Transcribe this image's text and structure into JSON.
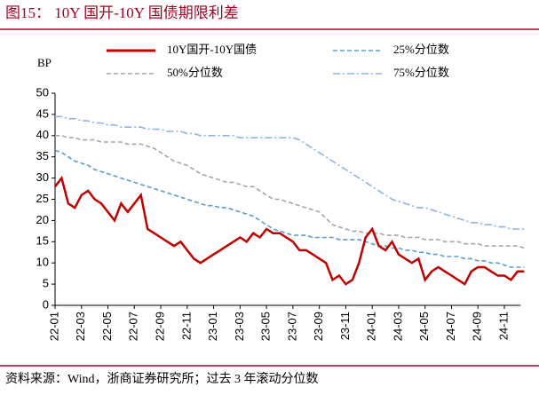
{
  "chart_data": {
    "type": "line",
    "title": "图15：  10Y 国开-10Y 国债期限利差",
    "y_label": "BP",
    "source": "资料来源：Wind，浙商证券研究所；过去 3 年滚动分位数",
    "categories": [
      "22-01",
      null,
      null,
      null,
      "22-03",
      null,
      null,
      null,
      "22-05",
      null,
      null,
      null,
      "22-07",
      null,
      null,
      null,
      "22-09",
      null,
      null,
      null,
      "22-11",
      null,
      null,
      null,
      "23-01",
      null,
      null,
      null,
      "23-03",
      null,
      null,
      null,
      "23-05",
      null,
      null,
      null,
      "23-07",
      null,
      null,
      null,
      "23-09",
      null,
      null,
      null,
      "23-11",
      null,
      null,
      null,
      "24-01",
      null,
      null,
      null,
      "24-03",
      null,
      null,
      null,
      "24-05",
      null,
      null,
      null,
      "24-07",
      null,
      null,
      null,
      "24-09",
      null,
      null,
      null,
      "24-11",
      null,
      null,
      null
    ],
    "ylim": [
      0,
      50
    ],
    "yticks": [
      0,
      5,
      10,
      15,
      20,
      25,
      30,
      35,
      40,
      45,
      50
    ],
    "series": [
      {
        "name": "10Y国开-10Y国债",
        "color": "#c00000",
        "style": "solid",
        "values": [
          28,
          30,
          24,
          23,
          26,
          27,
          25,
          24,
          22,
          20,
          24,
          22,
          24,
          26,
          18,
          17,
          16,
          15,
          14,
          15,
          13,
          11,
          10,
          11,
          12,
          13,
          14,
          15,
          16,
          15,
          17,
          16,
          18,
          17,
          17,
          16,
          15,
          13,
          13,
          12,
          11,
          10,
          6,
          7,
          5,
          6,
          10,
          16,
          18,
          14,
          13,
          15,
          12,
          11,
          10,
          11,
          6,
          8,
          9,
          8,
          7,
          6,
          5,
          8,
          9,
          9,
          8,
          7,
          7,
          6,
          8,
          8
        ]
      },
      {
        "name": "25%分位数",
        "color": "#5b9bd5",
        "style": "dashed",
        "values": [
          36.5,
          36,
          35,
          34,
          33.5,
          33,
          32,
          31.5,
          31,
          30.5,
          30,
          29.5,
          29,
          28.5,
          28,
          27.5,
          27,
          26.5,
          26,
          25.5,
          25,
          24.5,
          24,
          23.5,
          23.5,
          23,
          23,
          22.5,
          22,
          21.5,
          21,
          20,
          19,
          18,
          17.5,
          17,
          16.5,
          16.5,
          16.5,
          16,
          16,
          16,
          16,
          15.5,
          15.5,
          15.5,
          15.5,
          15,
          14.5,
          14,
          14,
          13.5,
          13.5,
          13,
          13,
          12.5,
          12.5,
          12,
          12,
          11.5,
          11.5,
          11.5,
          11,
          11,
          10.5,
          10.5,
          10,
          10,
          9.5,
          9,
          9,
          9
        ]
      },
      {
        "name": "50%分位数",
        "color": "#a6a6a6",
        "style": "dashed",
        "values": [
          40,
          40,
          39.5,
          39.5,
          39,
          39,
          39,
          38.5,
          38.5,
          38.5,
          38.5,
          38,
          38,
          38,
          37.5,
          37,
          36,
          35,
          34,
          33.5,
          33,
          32,
          31,
          30.5,
          30,
          29.5,
          29,
          29,
          28.5,
          28,
          28,
          27,
          26,
          25,
          25,
          24.5,
          24,
          23.5,
          23,
          22.5,
          22,
          20.5,
          19,
          18.5,
          18,
          17.5,
          17.5,
          17,
          17,
          17,
          16.5,
          16.5,
          16.5,
          16,
          16,
          16,
          15.5,
          15.5,
          15.5,
          15,
          15,
          15,
          14.5,
          14.5,
          14.5,
          14,
          14,
          14,
          14,
          14,
          14,
          13.5
        ]
      },
      {
        "name": "75%分位数",
        "color": "#8eb4e3",
        "style": "dashdot",
        "values": [
          44.5,
          44.5,
          44,
          44,
          43.5,
          43.5,
          43,
          43,
          42.5,
          42.5,
          42,
          42,
          42,
          42,
          41.5,
          41.5,
          41.5,
          41,
          41,
          41,
          40.5,
          40.5,
          40,
          40,
          40,
          40,
          40,
          40,
          39.5,
          39.5,
          39.5,
          39.5,
          39.5,
          39.5,
          39.5,
          39.5,
          39.5,
          39,
          38,
          37,
          36,
          35,
          34,
          33,
          32,
          31,
          30,
          29,
          28,
          27,
          26,
          25,
          24.5,
          24,
          23.5,
          23,
          23,
          22.5,
          22,
          21.5,
          21,
          20.5,
          20,
          19.5,
          19.5,
          19,
          19,
          18.5,
          18.5,
          18,
          18,
          18
        ]
      }
    ]
  }
}
